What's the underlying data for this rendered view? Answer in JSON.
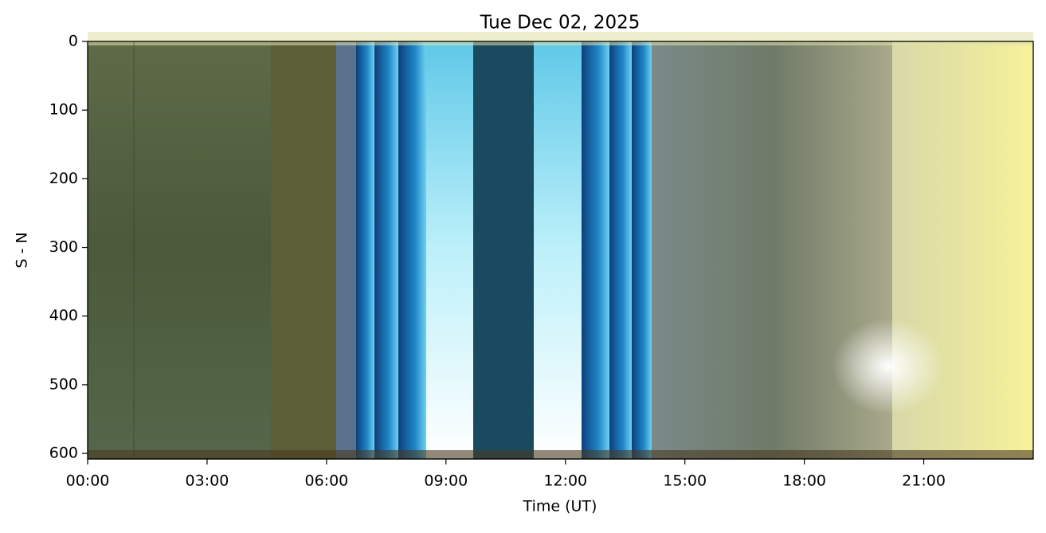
{
  "chart_data": {
    "type": "image",
    "title": "Tue Dec 02, 2025",
    "xlabel": "Time (UT)",
    "ylabel": "S - N",
    "xlim": [
      0,
      23.75
    ],
    "xticks": [
      {
        "value": 0,
        "label": "00:00"
      },
      {
        "value": 3,
        "label": "03:00"
      },
      {
        "value": 6,
        "label": "06:00"
      },
      {
        "value": 9,
        "label": "09:00"
      },
      {
        "value": 12,
        "label": "12:00"
      },
      {
        "value": 15,
        "label": "15:00"
      },
      {
        "value": 18,
        "label": "18:00"
      },
      {
        "value": 21,
        "label": "21:00"
      }
    ],
    "ylim": [
      608,
      0
    ],
    "yticks": [
      0,
      100,
      200,
      300,
      400,
      500,
      600
    ]
  }
}
